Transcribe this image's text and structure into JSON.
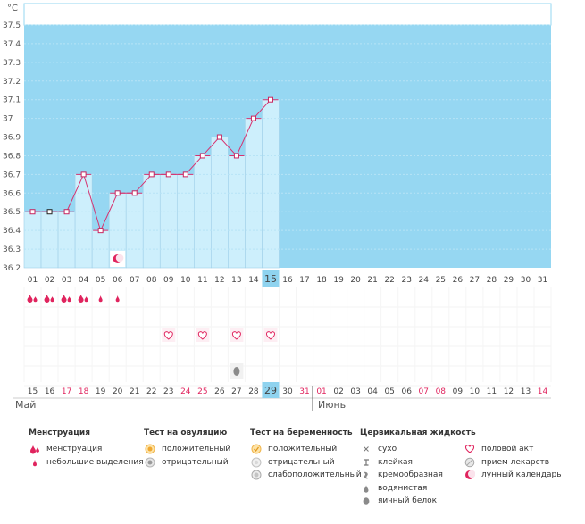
{
  "chart_data": {
    "type": "line",
    "title": "",
    "ylabel": "°C",
    "ylim": [
      36.2,
      37.5
    ],
    "yticks": [
      "36.2",
      "36.3",
      "36.4",
      "36.5",
      "36.6",
      "36.7",
      "36.8",
      "36.9",
      "37",
      "37.1",
      "37.2",
      "37.3",
      "37.4",
      "37.5"
    ],
    "cycle_days": [
      "01",
      "02",
      "03",
      "04",
      "05",
      "06",
      "07",
      "08",
      "09",
      "10",
      "11",
      "12",
      "13",
      "14",
      "15",
      "16",
      "17",
      "18",
      "19",
      "20",
      "21",
      "22",
      "23",
      "24",
      "25",
      "26",
      "27",
      "28",
      "29",
      "30",
      "31"
    ],
    "current_day_index": 14,
    "temperatures": [
      36.5,
      36.5,
      36.5,
      36.7,
      36.4,
      36.6,
      36.6,
      36.7,
      36.7,
      36.7,
      36.8,
      36.9,
      36.8,
      37.0,
      37.1
    ],
    "dates": [
      "15",
      "16",
      "17",
      "18",
      "19",
      "20",
      "21",
      "22",
      "23",
      "24",
      "25",
      "26",
      "27",
      "28",
      "29",
      "30",
      "31",
      "01",
      "02",
      "03",
      "04",
      "05",
      "06",
      "07",
      "08",
      "09",
      "10",
      "11",
      "12",
      "13",
      "14"
    ],
    "date_red": [
      false,
      false,
      true,
      true,
      false,
      false,
      false,
      false,
      false,
      true,
      true,
      false,
      false,
      false,
      false,
      false,
      true,
      true,
      false,
      false,
      false,
      false,
      false,
      true,
      true,
      false,
      false,
      false,
      false,
      false,
      true
    ],
    "month_may": "Май",
    "month_june": "Июнь",
    "menstruation_days": [
      "01",
      "02",
      "03",
      "04",
      "05",
      "06"
    ],
    "menstruation_kind": [
      "heavy",
      "heavy",
      "heavy",
      "heavy",
      "light",
      "light"
    ],
    "lunar_day": "06",
    "intercourse_days": [
      "09",
      "11",
      "13",
      "15"
    ],
    "fluid_egg_white_day": "13",
    "colors": {
      "bg": "#96d7f2",
      "bar": "#cdeffc",
      "bar_border": "#9fcfe8",
      "line": "#d63370",
      "marker_edge": "#c8245e",
      "grid": "#c5e8f7",
      "accent_red": "#e0245e",
      "highlight": "#8fd3ef"
    }
  },
  "legend": {
    "menstruation": {
      "title": "Менструация",
      "items": [
        "менструация",
        "небольшие выделения"
      ]
    },
    "ovulation": {
      "title": "Тест на овуляцию",
      "items": [
        "положительный",
        "отрицательный"
      ]
    },
    "pregnancy": {
      "title": "Тест на беременность",
      "items": [
        "положительный",
        "отрицательный",
        "слабоположительный"
      ]
    },
    "cervical": {
      "title": "Цервикальная жидкость",
      "items": [
        "сухо",
        "клейкая",
        "кремообразная",
        "водянистая",
        "яичный белок"
      ]
    },
    "other": {
      "items": [
        "половой акт",
        "прием лекарств",
        "лунный календарь"
      ]
    }
  }
}
